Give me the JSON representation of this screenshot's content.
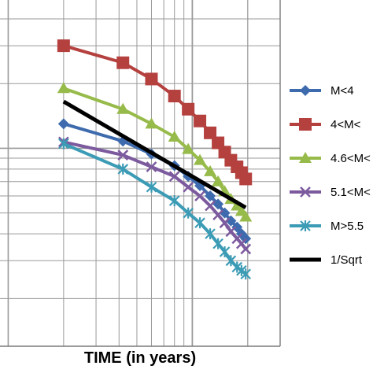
{
  "chart_data": {
    "type": "line",
    "title": "",
    "xlabel": "TIME (in years)",
    "ylabel": "",
    "xscale": "log",
    "yscale": "log",
    "grid": true,
    "legend_position": "right",
    "series": [
      {
        "name": "M<4",
        "color": "#3E6BAE",
        "marker": "diamond",
        "points": [
          [
            0.2,
            0.13
          ],
          [
            0.42,
            0.108
          ],
          [
            0.6,
            0.094
          ],
          [
            0.8,
            0.083
          ],
          [
            0.95,
            0.074
          ],
          [
            1.1,
            0.067
          ],
          [
            1.25,
            0.06
          ],
          [
            1.38,
            0.055
          ],
          [
            1.5,
            0.05
          ],
          [
            1.62,
            0.046
          ],
          [
            1.75,
            0.043
          ],
          [
            1.85,
            0.04
          ],
          [
            1.95,
            0.038
          ]
        ]
      },
      {
        "name": "4<M<",
        "color": "#B5413F",
        "marker": "square",
        "points": [
          [
            0.2,
            0.3
          ],
          [
            0.42,
            0.25
          ],
          [
            0.6,
            0.21
          ],
          [
            0.8,
            0.175
          ],
          [
            0.95,
            0.152
          ],
          [
            1.1,
            0.134
          ],
          [
            1.25,
            0.118
          ],
          [
            1.38,
            0.106
          ],
          [
            1.5,
            0.096
          ],
          [
            1.62,
            0.088
          ],
          [
            1.75,
            0.082
          ],
          [
            1.85,
            0.077
          ],
          [
            1.95,
            0.072
          ]
        ]
      },
      {
        "name": "4.6<M<",
        "color": "#97BB4A",
        "marker": "triangle",
        "points": [
          [
            0.2,
            0.19
          ],
          [
            0.42,
            0.152
          ],
          [
            0.6,
            0.13
          ],
          [
            0.8,
            0.113
          ],
          [
            0.95,
            0.099
          ],
          [
            1.1,
            0.088
          ],
          [
            1.25,
            0.078
          ],
          [
            1.38,
            0.07
          ],
          [
            1.5,
            0.063
          ],
          [
            1.62,
            0.058
          ],
          [
            1.75,
            0.054
          ],
          [
            1.85,
            0.051
          ],
          [
            1.95,
            0.048
          ]
        ]
      },
      {
        "name": "5.1<M<",
        "color": "#7C5A9E",
        "marker": "x",
        "points": [
          [
            0.2,
            0.107
          ],
          [
            0.42,
            0.093
          ],
          [
            0.6,
            0.082
          ],
          [
            0.8,
            0.074
          ],
          [
            0.95,
            0.066
          ],
          [
            1.1,
            0.06
          ],
          [
            1.25,
            0.054
          ],
          [
            1.38,
            0.049
          ],
          [
            1.5,
            0.045
          ],
          [
            1.62,
            0.041
          ],
          [
            1.75,
            0.038
          ],
          [
            1.85,
            0.036
          ],
          [
            1.95,
            0.034
          ]
        ]
      },
      {
        "name": "M>5.5",
        "color": "#3C9BB5",
        "marker": "star",
        "points": [
          [
            0.2,
            0.105
          ],
          [
            0.42,
            0.08
          ],
          [
            0.6,
            0.066
          ],
          [
            0.8,
            0.057
          ],
          [
            0.95,
            0.05
          ],
          [
            1.1,
            0.045
          ],
          [
            1.25,
            0.04
          ],
          [
            1.38,
            0.036
          ],
          [
            1.5,
            0.033
          ],
          [
            1.62,
            0.03
          ],
          [
            1.75,
            0.028
          ],
          [
            1.85,
            0.027
          ],
          [
            1.95,
            0.026
          ]
        ]
      },
      {
        "name": "1/Sqrt",
        "color": "#000000",
        "marker": "none",
        "points": [
          [
            0.2,
            0.165
          ],
          [
            1.95,
            0.053
          ]
        ]
      }
    ]
  }
}
